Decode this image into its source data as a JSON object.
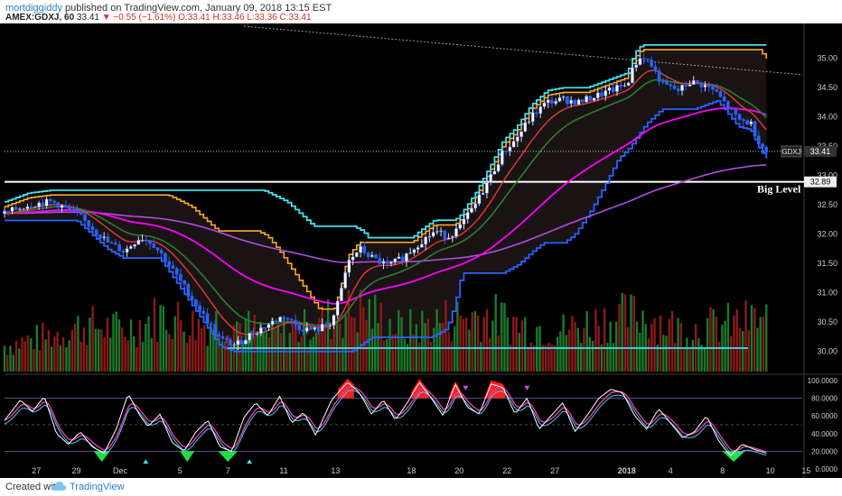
{
  "header": {
    "author": "mortdiggiddy",
    "published_text": "published on TradingView.com, January 09, 2018 13:15 EST",
    "symbol": "AMEX:GDXJ, 60",
    "last": "33.41",
    "change": "▼ −0.55 (−1.61%)",
    "open": "O:33.41",
    "high": "H:33.46",
    "low": "L:33.36",
    "close": "C:33.41"
  },
  "footer": {
    "created_with": "Created with",
    "brand": "TradingView"
  },
  "colors": {
    "background": "#000000",
    "panel_border": "#3a3a3a",
    "candle_up": "#ffffff",
    "candle_down": "#2962ff",
    "ema_fast": "#e53935",
    "ema_slow": "#2e7d32",
    "ma_mid": "#ff00ff",
    "ma_long": "#b04ce0",
    "channel_upper": "#ffa726",
    "channel_lower": "#2962ff",
    "stop_line": "#40e0f0",
    "big_level": "#ffffff",
    "vol_up": "#1b7a2a",
    "vol_down": "#8a1a1a",
    "stoch_k": "#ffffff",
    "stoch_d": "#e040a0",
    "stoch_k2": "#4fc3f7",
    "ob_fill": "#ff2020",
    "os_fill": "#20e040",
    "axis_text": "#cccccc"
  },
  "chart_data": {
    "type": "candlestick",
    "symbol": "GDXJ",
    "last_label": "GDXJ",
    "last_value": "33.41",
    "big_level_value": "32.89",
    "annotation": "Big Level",
    "price_axis": {
      "min": 29.65,
      "max": 35.55,
      "ticks": [
        "35.00",
        "34.50",
        "34.00",
        "33.50",
        "33.00",
        "32.50",
        "32.00",
        "31.50",
        "31.00",
        "30.50",
        "30.00"
      ]
    },
    "osc_axis": {
      "min": -2,
      "max": 105,
      "ticks": [
        "100.0000",
        "80.0000",
        "60.0000",
        "40.0000",
        "20.0000",
        "0.0000"
      ]
    },
    "x_ticks": [
      {
        "label": "27",
        "t": 0.04
      },
      {
        "label": "29",
        "t": 0.09
      },
      {
        "label": "Dec",
        "t": 0.145
      },
      {
        "label": "5",
        "t": 0.22
      },
      {
        "label": "7",
        "t": 0.28
      },
      {
        "label": "11",
        "t": 0.35
      },
      {
        "label": "13",
        "t": 0.415
      },
      {
        "label": "18",
        "t": 0.51
      },
      {
        "label": "20",
        "t": 0.57
      },
      {
        "label": "22",
        "t": 0.63
      },
      {
        "label": "27",
        "t": 0.69
      },
      {
        "label": "2018",
        "t": 0.78
      },
      {
        "label": "4",
        "t": 0.835
      },
      {
        "label": "8",
        "t": 0.9
      },
      {
        "label": "10",
        "t": 0.96
      },
      {
        "label": "15",
        "t": 1.005
      }
    ],
    "close_anchors": [
      [
        0.0,
        32.35
      ],
      [
        0.03,
        32.5
      ],
      [
        0.06,
        32.55
      ],
      [
        0.09,
        32.35
      ],
      [
        0.11,
        32.1
      ],
      [
        0.13,
        31.85
      ],
      [
        0.15,
        31.7
      ],
      [
        0.17,
        31.95
      ],
      [
        0.185,
        31.85
      ],
      [
        0.2,
        31.6
      ],
      [
        0.22,
        31.2
      ],
      [
        0.24,
        30.8
      ],
      [
        0.255,
        30.5
      ],
      [
        0.27,
        30.2
      ],
      [
        0.29,
        30.1
      ],
      [
        0.31,
        30.3
      ],
      [
        0.33,
        30.45
      ],
      [
        0.35,
        30.6
      ],
      [
        0.37,
        30.4
      ],
      [
        0.39,
        30.35
      ],
      [
        0.41,
        30.5
      ],
      [
        0.42,
        30.9
      ],
      [
        0.43,
        31.5
      ],
      [
        0.445,
        31.75
      ],
      [
        0.46,
        31.6
      ],
      [
        0.48,
        31.45
      ],
      [
        0.5,
        31.6
      ],
      [
        0.52,
        31.85
      ],
      [
        0.54,
        32.05
      ],
      [
        0.555,
        31.95
      ],
      [
        0.57,
        32.1
      ],
      [
        0.59,
        32.5
      ],
      [
        0.61,
        33.0
      ],
      [
        0.625,
        33.4
      ],
      [
        0.64,
        33.6
      ],
      [
        0.66,
        34.0
      ],
      [
        0.68,
        34.25
      ],
      [
        0.7,
        34.3
      ],
      [
        0.72,
        34.25
      ],
      [
        0.74,
        34.35
      ],
      [
        0.76,
        34.45
      ],
      [
        0.78,
        34.55
      ],
      [
        0.79,
        34.9
      ],
      [
        0.8,
        35.05
      ],
      [
        0.81,
        34.9
      ],
      [
        0.825,
        34.55
      ],
      [
        0.845,
        34.45
      ],
      [
        0.86,
        34.6
      ],
      [
        0.875,
        34.55
      ],
      [
        0.89,
        34.45
      ],
      [
        0.905,
        34.2
      ],
      [
        0.92,
        33.95
      ],
      [
        0.935,
        33.9
      ],
      [
        0.945,
        33.6
      ],
      [
        0.955,
        33.41
      ]
    ],
    "volume_anchors": [
      [
        0.0,
        0.25
      ],
      [
        0.06,
        0.35
      ],
      [
        0.1,
        0.45
      ],
      [
        0.15,
        0.4
      ],
      [
        0.2,
        0.55
      ],
      [
        0.24,
        0.45
      ],
      [
        0.28,
        0.5
      ],
      [
        0.33,
        0.35
      ],
      [
        0.37,
        0.4
      ],
      [
        0.42,
        0.55
      ],
      [
        0.45,
        0.6
      ],
      [
        0.5,
        0.4
      ],
      [
        0.55,
        0.5
      ],
      [
        0.6,
        0.55
      ],
      [
        0.65,
        0.45
      ],
      [
        0.7,
        0.4
      ],
      [
        0.75,
        0.5
      ],
      [
        0.8,
        0.55
      ],
      [
        0.85,
        0.4
      ],
      [
        0.9,
        0.45
      ],
      [
        0.95,
        0.5
      ]
    ],
    "stoch_k": [
      [
        0.0,
        55
      ],
      [
        0.02,
        78
      ],
      [
        0.035,
        65
      ],
      [
        0.05,
        82
      ],
      [
        0.065,
        40
      ],
      [
        0.08,
        28
      ],
      [
        0.095,
        42
      ],
      [
        0.11,
        25
      ],
      [
        0.125,
        18
      ],
      [
        0.14,
        45
      ],
      [
        0.155,
        85
      ],
      [
        0.17,
        60
      ],
      [
        0.18,
        48
      ],
      [
        0.195,
        62
      ],
      [
        0.21,
        30
      ],
      [
        0.225,
        20
      ],
      [
        0.24,
        42
      ],
      [
        0.255,
        55
      ],
      [
        0.27,
        25
      ],
      [
        0.285,
        20
      ],
      [
        0.3,
        58
      ],
      [
        0.315,
        75
      ],
      [
        0.33,
        60
      ],
      [
        0.345,
        82
      ],
      [
        0.36,
        52
      ],
      [
        0.375,
        64
      ],
      [
        0.39,
        38
      ],
      [
        0.41,
        78
      ],
      [
        0.43,
        98
      ],
      [
        0.445,
        86
      ],
      [
        0.46,
        62
      ],
      [
        0.475,
        78
      ],
      [
        0.49,
        55
      ],
      [
        0.505,
        75
      ],
      [
        0.52,
        98
      ],
      [
        0.535,
        80
      ],
      [
        0.55,
        60
      ],
      [
        0.565,
        96
      ],
      [
        0.58,
        70
      ],
      [
        0.595,
        62
      ],
      [
        0.61,
        96
      ],
      [
        0.625,
        92
      ],
      [
        0.64,
        62
      ],
      [
        0.655,
        80
      ],
      [
        0.67,
        45
      ],
      [
        0.685,
        60
      ],
      [
        0.7,
        75
      ],
      [
        0.715,
        42
      ],
      [
        0.73,
        60
      ],
      [
        0.745,
        80
      ],
      [
        0.76,
        90
      ],
      [
        0.775,
        86
      ],
      [
        0.79,
        60
      ],
      [
        0.805,
        45
      ],
      [
        0.82,
        68
      ],
      [
        0.835,
        52
      ],
      [
        0.85,
        35
      ],
      [
        0.865,
        42
      ],
      [
        0.88,
        60
      ],
      [
        0.895,
        32
      ],
      [
        0.91,
        15
      ],
      [
        0.925,
        28
      ],
      [
        0.94,
        22
      ],
      [
        0.955,
        18
      ]
    ],
    "overbought_ranges": [
      [
        0.418,
        0.438
      ],
      [
        0.51,
        0.532
      ],
      [
        0.556,
        0.576
      ],
      [
        0.6,
        0.628
      ]
    ],
    "oversold_ranges": [
      [
        0.112,
        0.132
      ],
      [
        0.22,
        0.238
      ],
      [
        0.268,
        0.292
      ],
      [
        0.9,
        0.928
      ]
    ],
    "up_markers": [
      0.177,
      0.307
    ],
    "down_markers": [
      0.578,
      0.655
    ]
  }
}
